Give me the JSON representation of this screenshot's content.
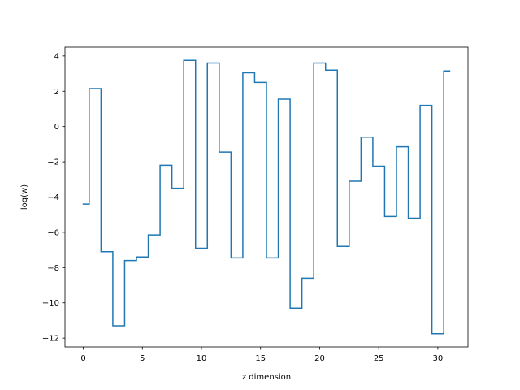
{
  "chart_data": {
    "type": "line",
    "drawstyle": "steps-mid",
    "xlabel": "z dimension",
    "ylabel": "log(w)",
    "xlim": [
      -1.55,
      32.55
    ],
    "ylim": [
      -12.5,
      4.5
    ],
    "xticks": [
      0,
      5,
      10,
      15,
      20,
      25,
      30
    ],
    "yticks": [
      -12,
      -10,
      -8,
      -6,
      -4,
      -2,
      0,
      2,
      4
    ],
    "grid": false,
    "legend": "none",
    "line_color": "#1f77b4",
    "x": [
      0,
      1,
      2,
      3,
      4,
      5,
      6,
      7,
      8,
      9,
      10,
      11,
      12,
      13,
      14,
      15,
      16,
      17,
      18,
      19,
      20,
      21,
      22,
      23,
      24,
      25,
      26,
      27,
      28,
      29,
      30,
      31
    ],
    "y": [
      -4.4,
      2.15,
      -7.1,
      -11.3,
      -7.6,
      -7.4,
      -6.15,
      -2.2,
      -3.5,
      3.75,
      -6.9,
      3.6,
      -1.45,
      -7.45,
      3.05,
      2.5,
      -7.45,
      1.55,
      -10.3,
      -8.6,
      3.6,
      3.2,
      -6.8,
      -3.1,
      -0.6,
      -2.25,
      -5.1,
      -1.15,
      -5.2,
      1.2,
      -11.75,
      3.15
    ]
  }
}
